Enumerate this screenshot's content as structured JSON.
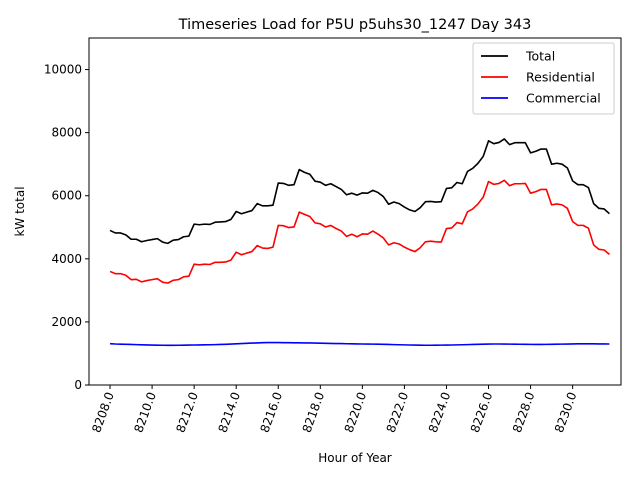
{
  "chart_data": {
    "type": "line",
    "title": "Timeseries Load for P5U p5uhs30_1247  Day 343",
    "xlabel": "Hour of Year",
    "ylabel": "kW total",
    "xlim": [
      8207.0,
      8232.3
    ],
    "ylim": [
      0,
      11000
    ],
    "xticks": [
      8208,
      8210,
      8212,
      8214,
      8216,
      8218,
      8220,
      8222,
      8224,
      8226,
      8228,
      8230
    ],
    "xtick_labels": [
      "8208.0",
      "8210.0",
      "8212.0",
      "8214.0",
      "8216.0",
      "8218.0",
      "8220.0",
      "8222.0",
      "8224.0",
      "8226.0",
      "8228.0",
      "8230.0"
    ],
    "yticks": [
      0,
      2000,
      4000,
      6000,
      8000,
      10000
    ],
    "ytick_labels": [
      "0",
      "2000",
      "4000",
      "6000",
      "8000",
      "10000"
    ],
    "legend_position": "top-right",
    "x_start": 8208.0,
    "x_step": 0.25,
    "series": [
      {
        "name": "Total",
        "color": "#000000",
        "values": [
          4900,
          4820,
          4820,
          4760,
          4620,
          4620,
          4540,
          4580,
          4610,
          4640,
          4530,
          4490,
          4590,
          4610,
          4700,
          4720,
          5100,
          5080,
          5100,
          5090,
          5160,
          5170,
          5180,
          5250,
          5500,
          5430,
          5480,
          5530,
          5750,
          5680,
          5680,
          5700,
          6400,
          6390,
          6330,
          6350,
          6830,
          6740,
          6680,
          6460,
          6430,
          6330,
          6380,
          6290,
          6200,
          6030,
          6080,
          6020,
          6090,
          6080,
          6170,
          6100,
          5970,
          5730,
          5800,
          5750,
          5640,
          5550,
          5500,
          5620,
          5810,
          5820,
          5800,
          5810,
          6230,
          6250,
          6420,
          6380,
          6770,
          6870,
          7030,
          7250,
          7740,
          7650,
          7690,
          7800,
          7620,
          7680,
          7680,
          7680,
          7360,
          7410,
          7480,
          7480,
          7000,
          7030,
          7000,
          6880,
          6470,
          6350,
          6350,
          6260,
          5750,
          5600,
          5580,
          5430
        ]
      },
      {
        "name": "Residential",
        "color": "#ff0000",
        "values": [
          3600,
          3530,
          3530,
          3480,
          3340,
          3350,
          3270,
          3310,
          3340,
          3370,
          3260,
          3230,
          3320,
          3340,
          3430,
          3450,
          3830,
          3810,
          3830,
          3820,
          3890,
          3890,
          3900,
          3960,
          4210,
          4130,
          4180,
          4230,
          4420,
          4340,
          4330,
          4370,
          5060,
          5050,
          4990,
          5010,
          5480,
          5410,
          5340,
          5140,
          5110,
          5010,
          5060,
          4960,
          4880,
          4710,
          4780,
          4700,
          4790,
          4780,
          4880,
          4780,
          4660,
          4440,
          4510,
          4470,
          4370,
          4290,
          4230,
          4350,
          4540,
          4560,
          4540,
          4530,
          4960,
          4980,
          5150,
          5110,
          5490,
          5580,
          5740,
          5960,
          6450,
          6360,
          6390,
          6490,
          6320,
          6380,
          6380,
          6390,
          6080,
          6130,
          6200,
          6200,
          5710,
          5740,
          5710,
          5600,
          5180,
          5060,
          5060,
          4970,
          4440,
          4300,
          4280,
          4140
        ]
      },
      {
        "name": "Commercial",
        "color": "#0000ff",
        "values": [
          1310,
          1300,
          1295,
          1290,
          1285,
          1280,
          1275,
          1270,
          1265,
          1262,
          1260,
          1258,
          1258,
          1260,
          1262,
          1265,
          1268,
          1270,
          1273,
          1276,
          1280,
          1285,
          1290,
          1298,
          1305,
          1315,
          1322,
          1328,
          1335,
          1340,
          1345,
          1347,
          1345,
          1342,
          1340,
          1338,
          1336,
          1335,
          1333,
          1330,
          1326,
          1322,
          1318,
          1315,
          1312,
          1308,
          1305,
          1303,
          1300,
          1298,
          1296,
          1294,
          1290,
          1285,
          1280,
          1276,
          1272,
          1268,
          1265,
          1262,
          1260,
          1260,
          1262,
          1264,
          1266,
          1268,
          1272,
          1276,
          1280,
          1285,
          1290,
          1294,
          1298,
          1300,
          1300,
          1298,
          1296,
          1294,
          1292,
          1290,
          1288,
          1286,
          1286,
          1288,
          1290,
          1293,
          1296,
          1299,
          1302,
          1304,
          1305,
          1306,
          1305,
          1303,
          1302,
          1300
        ]
      }
    ]
  }
}
